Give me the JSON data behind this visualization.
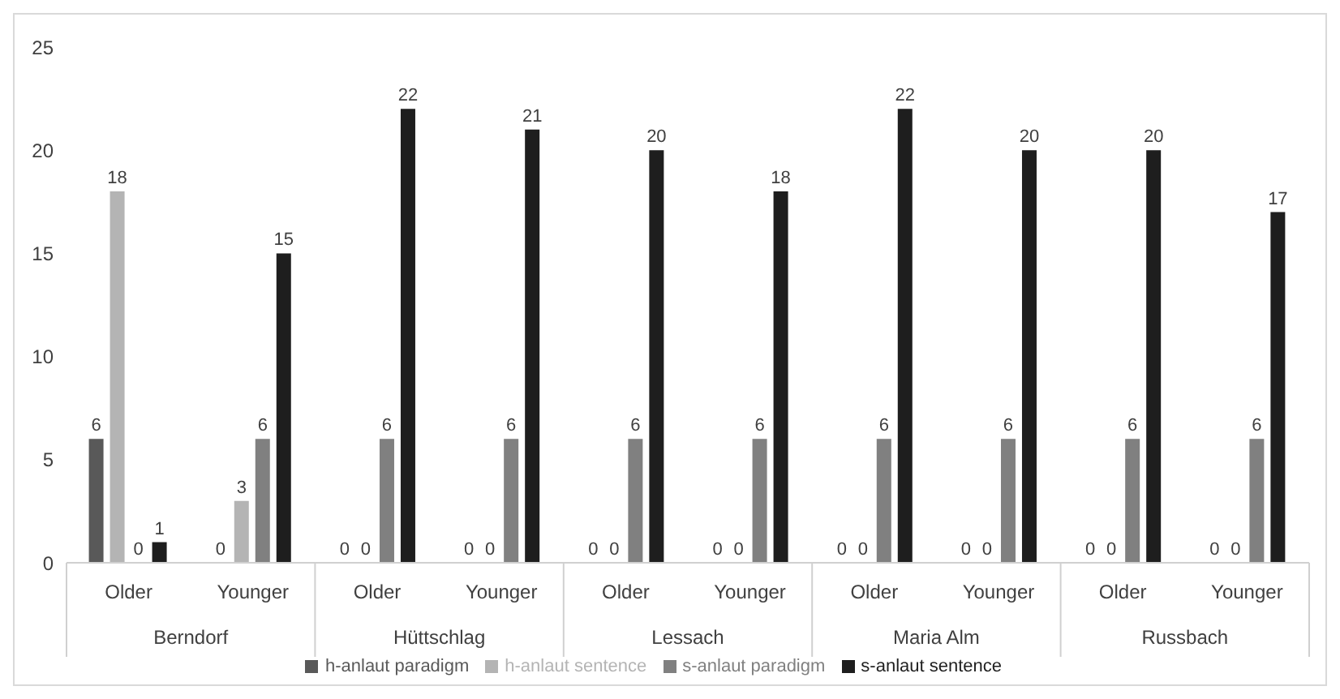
{
  "chart_data": {
    "type": "bar",
    "categories": [
      "Older",
      "Younger",
      "Older",
      "Younger",
      "Older",
      "Younger",
      "Older",
      "Younger",
      "Older",
      "Younger"
    ],
    "annotations": [
      "Berndorf",
      "Hüttschlag",
      "Lessach",
      "Maria Alm",
      "Russbach"
    ],
    "series": [
      {
        "name": "h-anlaut paradigm",
        "color": "#595959",
        "values": [
          6,
          0,
          0,
          0,
          0,
          0,
          0,
          0,
          0,
          0
        ]
      },
      {
        "name": "h-anlaut sentence",
        "color": "#b4b4b4",
        "values": [
          18,
          3,
          0,
          0,
          0,
          0,
          0,
          0,
          0,
          0
        ]
      },
      {
        "name": "s-anlaut paradigm",
        "color": "#808080",
        "values": [
          0,
          6,
          6,
          6,
          6,
          6,
          6,
          6,
          6,
          6
        ]
      },
      {
        "name": "s-anlaut sentence",
        "color": "#1e1e1e",
        "values": [
          1,
          15,
          22,
          21,
          20,
          18,
          22,
          20,
          20,
          17
        ]
      }
    ],
    "ylim": [
      0,
      25
    ],
    "yticks": [
      0,
      5,
      10,
      15,
      20,
      25
    ],
    "data_labels": true,
    "legend": "bottom",
    "grid": false
  }
}
